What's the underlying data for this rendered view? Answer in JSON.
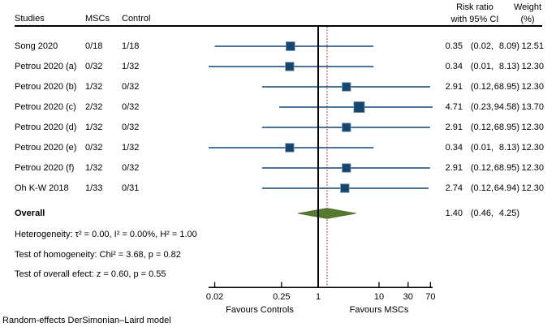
{
  "header": {
    "studies": "Studies",
    "mscs": "MSCs",
    "control": "Control",
    "risk_ratio_line1": "Risk ratio",
    "risk_ratio_line2": "with 95% CI",
    "weight_line1": "Weight",
    "weight_line2": "(%)"
  },
  "chart_data": {
    "type": "forest",
    "x_scale": "log",
    "axis": {
      "ticks": [
        0.02,
        0.25,
        1,
        10,
        30,
        70
      ],
      "tick_labels": [
        "0.02",
        "0.25",
        "1",
        "10",
        "30",
        "70"
      ],
      "range": [
        0.02,
        70
      ],
      "ref_value": 1
    },
    "axis_labels": {
      "left": "Favours Controls",
      "right": "Favours MSCs"
    },
    "studies": [
      {
        "label": "Song 2020",
        "mscs": "0/18",
        "control": "1/18",
        "rr": 0.35,
        "ci_low": 0.02,
        "ci_high": 8.09,
        "weight": "12.51"
      },
      {
        "label": "Petrou 2020 (a)",
        "mscs": "0/32",
        "control": "1/32",
        "rr": 0.34,
        "ci_low": 0.01,
        "ci_high": 8.13,
        "weight": "12.30"
      },
      {
        "label": "Petrou 2020 (b)",
        "mscs": "1/32",
        "control": "0/32",
        "rr": 2.91,
        "ci_low": 0.12,
        "ci_high": 68.95,
        "weight": "12.30"
      },
      {
        "label": "Petrou 2020 (c)",
        "mscs": "2/32",
        "control": "0/32",
        "rr": 4.71,
        "ci_low": 0.23,
        "ci_high": 94.58,
        "weight": "13.70"
      },
      {
        "label": "Petrou 2020 (d)",
        "mscs": "1/32",
        "control": "0/32",
        "rr": 2.91,
        "ci_low": 0.12,
        "ci_high": 68.95,
        "weight": "12.30"
      },
      {
        "label": "Petrou 2020 (e)",
        "mscs": "0/32",
        "control": "1/32",
        "rr": 0.34,
        "ci_low": 0.01,
        "ci_high": 8.13,
        "weight": "12.30"
      },
      {
        "label": "Petrou 2020 (f)",
        "mscs": "1/32",
        "control": "0/32",
        "rr": 2.91,
        "ci_low": 0.12,
        "ci_high": 68.95,
        "weight": "12.30"
      },
      {
        "label": "Oh K-W 2018",
        "mscs": "1/33",
        "control": "0/31",
        "rr": 2.74,
        "ci_low": 0.12,
        "ci_high": 64.94,
        "weight": "12.30"
      }
    ],
    "overall": {
      "label": "Overall",
      "rr": 1.4,
      "ci_low": 0.46,
      "ci_high": 4.25
    }
  },
  "stats": {
    "heterogeneity": "Heterogeneity: τ² = 0.00, I² = 0.00%, H² = 1.00",
    "homogeneity": "Test of homogeneity: Chi² = 3.68, p = 0.82",
    "overall_effect": "Test of overall efect: z = 0.60, p = 0.55"
  },
  "footer": "Random-effects DerSimonian–Laird model",
  "colors": {
    "ci_line": "#33608c",
    "estimate_square": "#16466d",
    "estimate_square_edge": "#6e93b5",
    "diamond": "#56792e",
    "diamond_edge": "#425f1f",
    "ref_line": "#000000",
    "overall_line": "#b22222"
  }
}
